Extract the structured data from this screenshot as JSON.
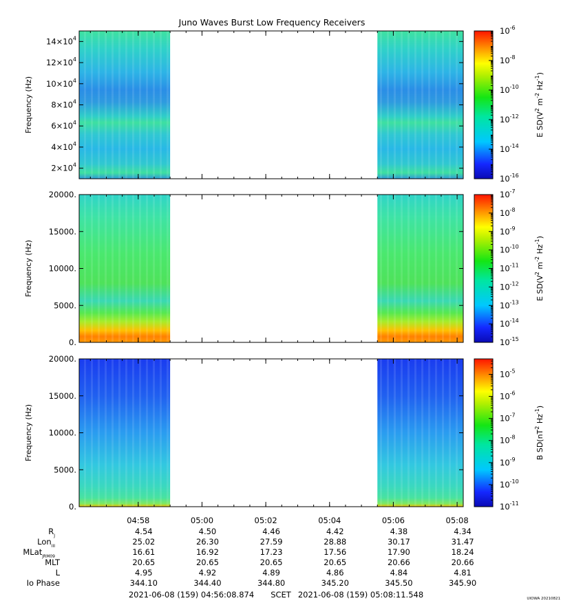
{
  "title": "Juno Waves Burst Low Frequency Receivers",
  "watermark": "UIOWA 20210821",
  "chart_data": [
    {
      "type": "heatmap",
      "ylabel": "Frequency (Hz)",
      "ylim": [
        10000,
        150000
      ],
      "y_ticks": [
        {
          "value": 20000,
          "base": "2×10",
          "exp": "4"
        },
        {
          "value": 40000,
          "base": "4×10",
          "exp": "4"
        },
        {
          "value": 60000,
          "base": "6×10",
          "exp": "4"
        },
        {
          "value": 80000,
          "base": "8×10",
          "exp": "4"
        },
        {
          "value": 100000,
          "base": "10×10",
          "exp": "4"
        },
        {
          "value": 120000,
          "base": "12×10",
          "exp": "4"
        },
        {
          "value": 140000,
          "base": "14×10",
          "exp": "4"
        }
      ],
      "data_intervals": [
        [
          "04:56:08.874",
          "04:59:00"
        ],
        [
          "05:05:30",
          "05:08:11.548"
        ]
      ],
      "colorbar": {
        "label_base": "E SD(V",
        "label_sup1": "2",
        "label_mid": " m",
        "label_sup2": "-2",
        "label_mid2": " Hz",
        "label_sup3": "-1",
        "label_end": ")",
        "scale": "log",
        "range_exp": [
          -16,
          -6
        ],
        "ticks": [
          {
            "exp": "-6"
          },
          {
            "exp": "-8"
          },
          {
            "exp": "-10"
          },
          {
            "exp": "-12"
          },
          {
            "exp": "-14"
          },
          {
            "exp": "-16"
          }
        ]
      }
    },
    {
      "type": "heatmap",
      "ylabel": "Frequency (Hz)",
      "ylim": [
        0,
        20000
      ],
      "y_ticks": [
        {
          "value": 0,
          "label": "0."
        },
        {
          "value": 5000,
          "label": "5000."
        },
        {
          "value": 10000,
          "label": "10000."
        },
        {
          "value": 15000,
          "label": "15000."
        },
        {
          "value": 20000,
          "label": "20000."
        }
      ],
      "data_intervals": [
        [
          "04:56:08.874",
          "04:59:00"
        ],
        [
          "05:05:30",
          "05:08:11.548"
        ]
      ],
      "colorbar": {
        "label_base": "E SD(V",
        "label_sup1": "2",
        "label_mid": " m",
        "label_sup2": "-2",
        "label_mid2": " Hz",
        "label_sup3": "-1",
        "label_end": ")",
        "scale": "log",
        "range_exp": [
          -15,
          -7
        ],
        "ticks": [
          {
            "exp": "-7"
          },
          {
            "exp": "-8"
          },
          {
            "exp": "-9"
          },
          {
            "exp": "-10"
          },
          {
            "exp": "-11"
          },
          {
            "exp": "-12"
          },
          {
            "exp": "-13"
          },
          {
            "exp": "-14"
          },
          {
            "exp": "-15"
          }
        ]
      }
    },
    {
      "type": "heatmap",
      "ylabel": "Frequency (Hz)",
      "ylim": [
        0,
        20000
      ],
      "y_ticks": [
        {
          "value": 0,
          "label": "0."
        },
        {
          "value": 5000,
          "label": "5000."
        },
        {
          "value": 10000,
          "label": "10000."
        },
        {
          "value": 15000,
          "label": "15000."
        },
        {
          "value": 20000,
          "label": "20000."
        }
      ],
      "data_intervals": [
        [
          "04:56:08.874",
          "04:59:00"
        ],
        [
          "05:05:30",
          "05:08:11.548"
        ]
      ],
      "colorbar": {
        "label_base": "B SD(nT",
        "label_sup1": "2",
        "label_mid": " Hz",
        "label_sup2": "-1",
        "label_mid2": "",
        "label_sup3": "",
        "label_end": ")",
        "scale": "log",
        "range_exp": [
          -11,
          -4.3
        ],
        "ticks": [
          {
            "exp": "-5"
          },
          {
            "exp": "-6"
          },
          {
            "exp": "-7"
          },
          {
            "exp": "-8"
          },
          {
            "exp": "-9"
          },
          {
            "exp": "-10"
          },
          {
            "exp": "-11"
          }
        ]
      }
    }
  ],
  "time_axis": {
    "start": "04:56:08.874",
    "end": "05:08:11.548",
    "ticks": [
      "04:58",
      "05:00",
      "05:02",
      "05:04",
      "05:06",
      "05:08"
    ]
  },
  "ephemeris": {
    "rows": [
      {
        "label": "R",
        "sub": "J",
        "values": [
          "4.54",
          "4.50",
          "4.46",
          "4.42",
          "4.38",
          "4.34"
        ]
      },
      {
        "label": "Lon",
        "sub": "III",
        "values": [
          "25.02",
          "26.30",
          "27.59",
          "28.88",
          "30.17",
          "31.47"
        ]
      },
      {
        "label": "MLat",
        "sub": "JRM09",
        "values": [
          "16.61",
          "16.92",
          "17.23",
          "17.56",
          "17.90",
          "18.24"
        ]
      },
      {
        "label": "MLT",
        "sub": "",
        "values": [
          "20.65",
          "20.65",
          "20.65",
          "20.65",
          "20.66",
          "20.66"
        ]
      },
      {
        "label": "L",
        "sub": "",
        "values": [
          "4.95",
          "4.92",
          "4.89",
          "4.86",
          "4.84",
          "4.81"
        ]
      },
      {
        "label": "Io Phase",
        "sub": "",
        "values": [
          "344.10",
          "344.40",
          "344.80",
          "345.20",
          "345.50",
          "345.90"
        ]
      }
    ]
  },
  "footer": {
    "start_label": "2021-06-08 (159) 04:56:08.874",
    "scet_label": "SCET",
    "end_label": "2021-06-08 (159) 05:08:11.548"
  }
}
